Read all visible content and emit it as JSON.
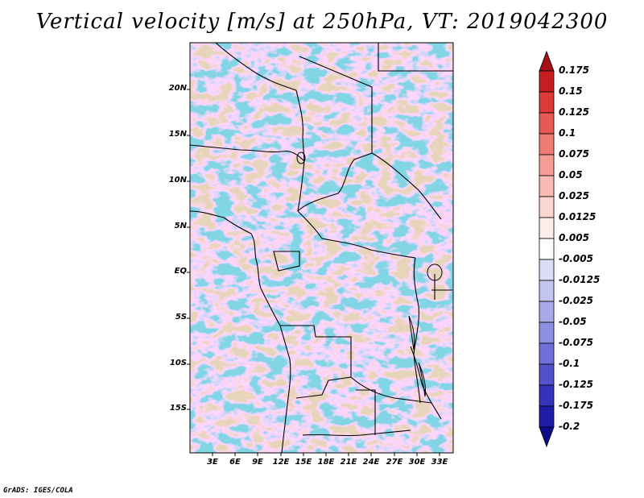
{
  "title": "Vertical velocity [m/s] at 250hPa, VT: 2019042300",
  "credit": "GrADS: IGES/COLA",
  "map": {
    "variable": "Vertical velocity",
    "units": "m/s",
    "level": "250hPa",
    "valid_time": "2019042300",
    "lat_labels": [
      "20N",
      "15N",
      "10N",
      "5N",
      "EQ",
      "5S",
      "10S",
      "15S"
    ],
    "lon_labels": [
      "3E",
      "6E",
      "9E",
      "12E",
      "15E",
      "18E",
      "21E",
      "24E",
      "27E",
      "30E",
      "33E"
    ]
  },
  "colorbar": {
    "labels": [
      "0.175",
      "0.15",
      "0.125",
      "0.1",
      "0.075",
      "0.05",
      "0.025",
      "0.0125",
      "0.005",
      "-0.005",
      "-0.0125",
      "-0.025",
      "-0.05",
      "-0.075",
      "-0.1",
      "-0.125",
      "-0.175",
      "-0.2"
    ],
    "colors": [
      "#a50f15",
      "#c81e22",
      "#dc3a36",
      "#e65a55",
      "#ee7c74",
      "#f49d95",
      "#f8bab3",
      "#fbd6d1",
      "#fdecea",
      "#ffffff",
      "#dcdcf6",
      "#c4c4f0",
      "#a9a9ea",
      "#8e8ee2",
      "#7070d8",
      "#5252cc",
      "#3434bb",
      "#1c1ca6",
      "#0e0e8c"
    ]
  }
}
